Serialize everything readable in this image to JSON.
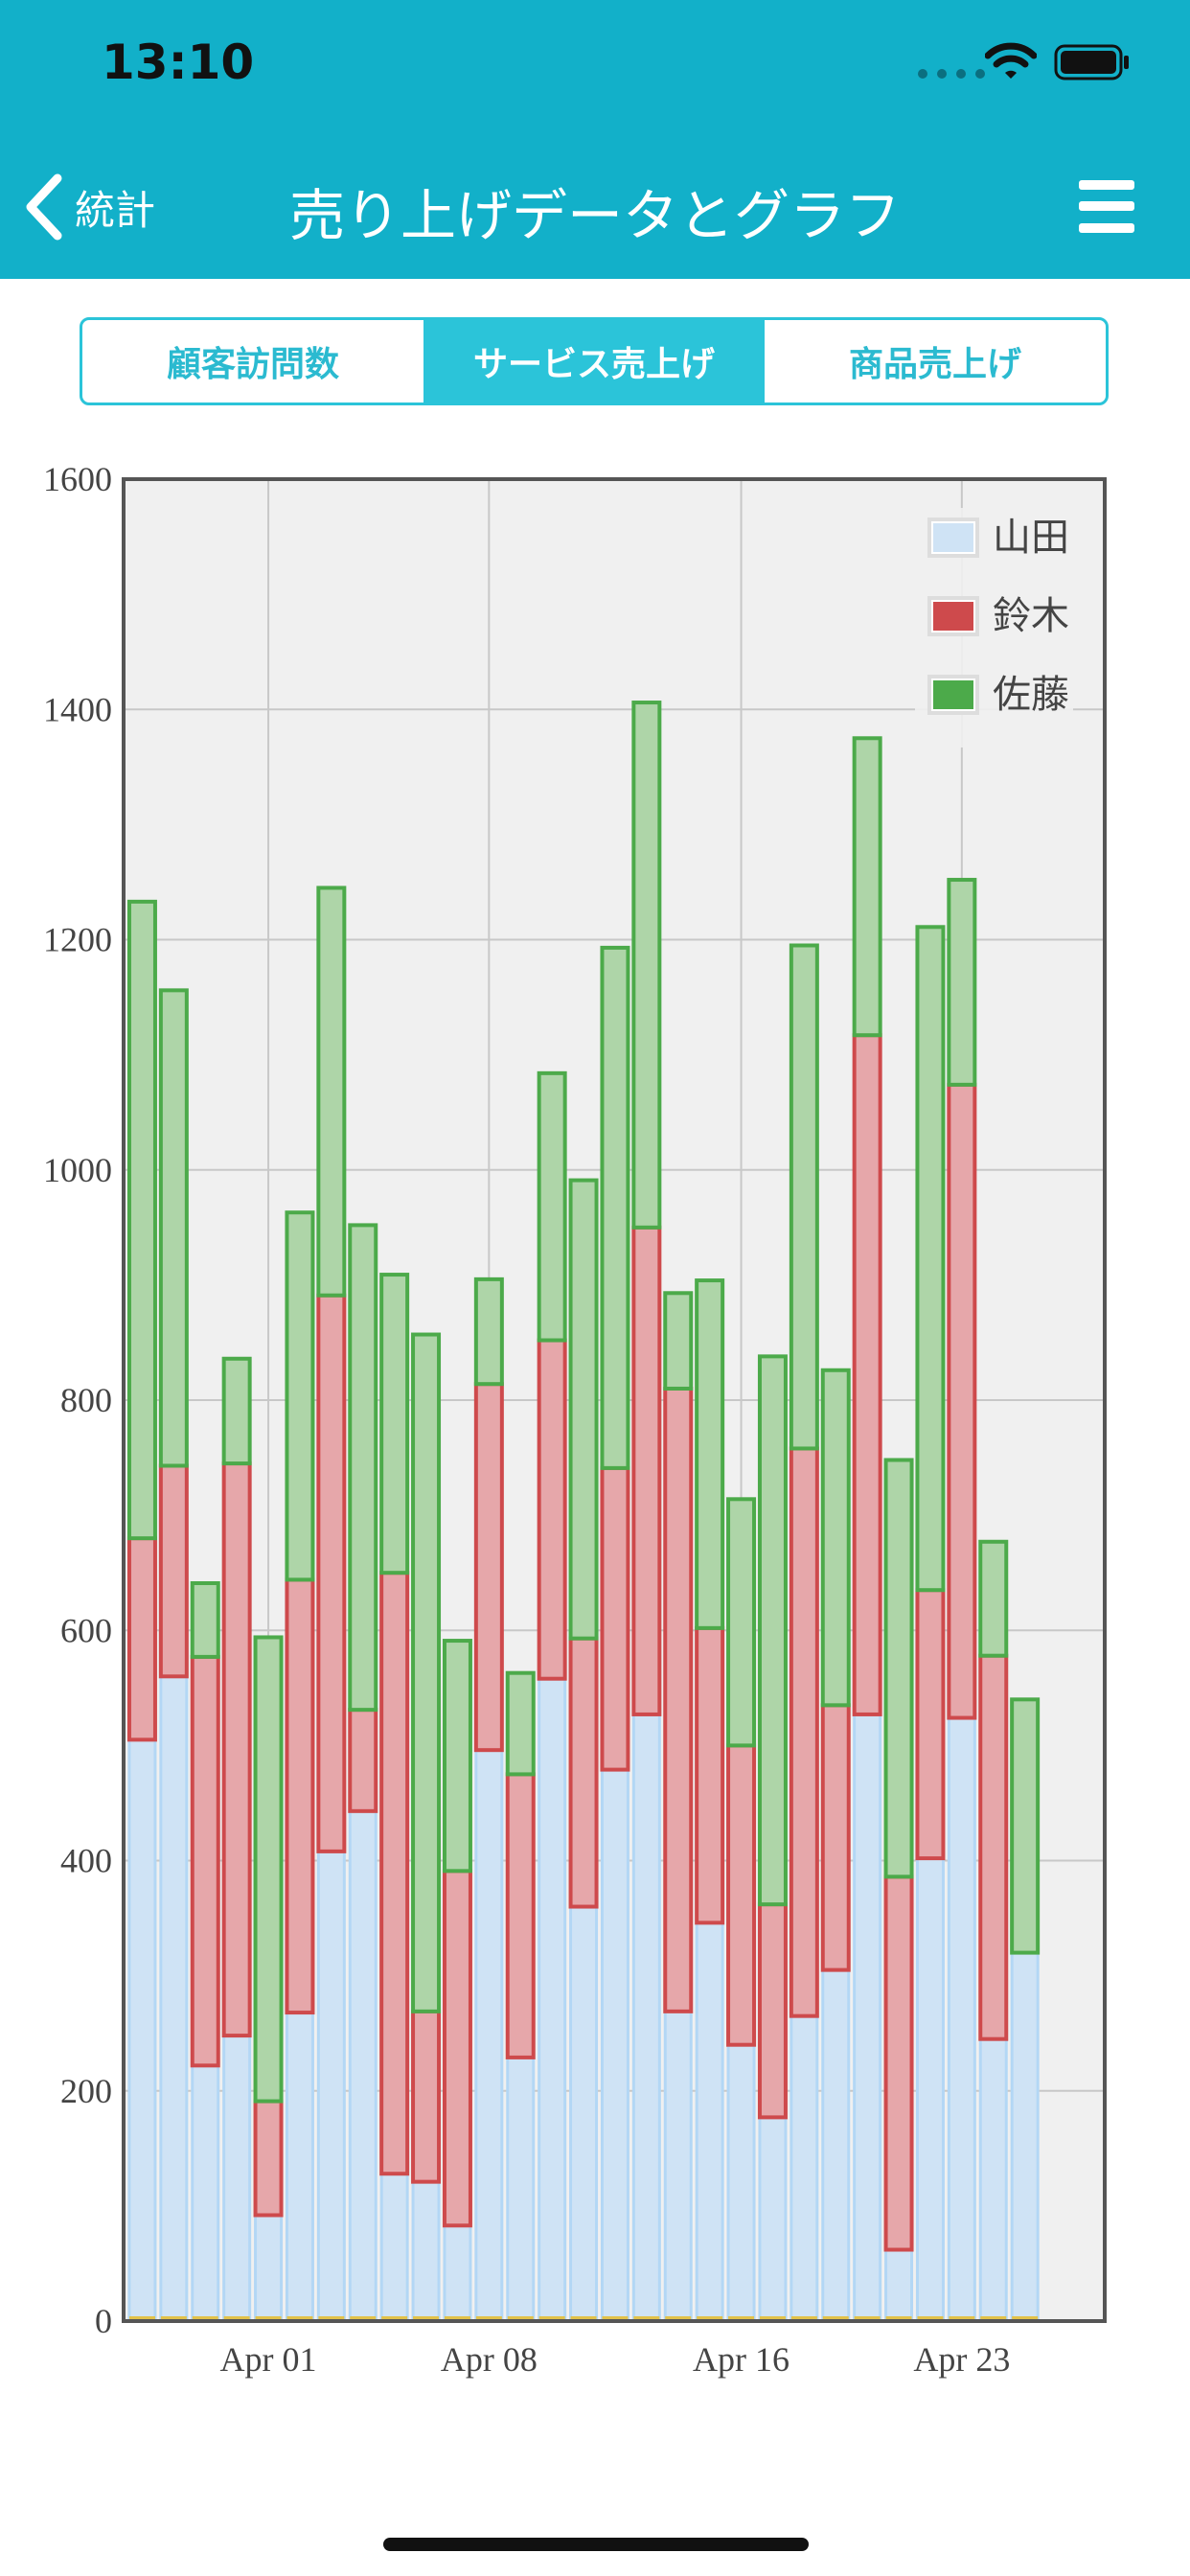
{
  "status": {
    "time": "13:10"
  },
  "nav": {
    "back_label": "統計",
    "title": "売り上げデータとグラフ"
  },
  "segments": [
    {
      "label": "顧客訪問数",
      "active": false
    },
    {
      "label": "サービス売上げ",
      "active": true
    },
    {
      "label": "商品売上げ",
      "active": false
    }
  ],
  "colors": {
    "header": "#12B0C9",
    "yamada_fill": "#CFE3F5",
    "yamada_edge": "#B3D7F5",
    "suzuki_fill": "#E6A7AA",
    "suzuki_edge": "#CE4A4C",
    "sato_fill": "#AED5A8",
    "sato_edge": "#4CAA4A"
  },
  "chart_data": {
    "type": "bar",
    "stacked": true,
    "ylim": [
      0,
      1600
    ],
    "yticks": [
      0,
      200,
      400,
      600,
      800,
      1000,
      1200,
      1400,
      1600
    ],
    "x_tick_labels": [
      "Apr 01",
      "Apr 08",
      "Apr 16",
      "Apr 23"
    ],
    "legend_position": "top-right",
    "grid": true,
    "series": [
      {
        "name": "山田",
        "values": [
          505,
          560,
          222,
          248,
          92,
          268,
          408,
          443,
          128,
          121,
          83,
          496,
          229,
          558,
          360,
          479,
          527,
          269,
          346,
          240,
          177,
          265,
          305,
          527,
          62,
          402,
          524,
          245,
          320
        ]
      },
      {
        "name": "鈴木",
        "values": [
          175,
          183,
          355,
          497,
          99,
          376,
          483,
          88,
          522,
          148,
          308,
          318,
          246,
          294,
          233,
          262,
          423,
          541,
          256,
          260,
          185,
          493,
          230,
          590,
          324,
          233,
          550,
          333,
          0
        ]
      },
      {
        "name": "佐藤",
        "values": [
          553,
          413,
          64,
          91,
          403,
          319,
          354,
          421,
          259,
          588,
          200,
          91,
          88,
          232,
          398,
          452,
          456,
          83,
          302,
          214,
          476,
          437,
          291,
          258,
          362,
          576,
          178,
          99,
          220
        ]
      }
    ]
  }
}
